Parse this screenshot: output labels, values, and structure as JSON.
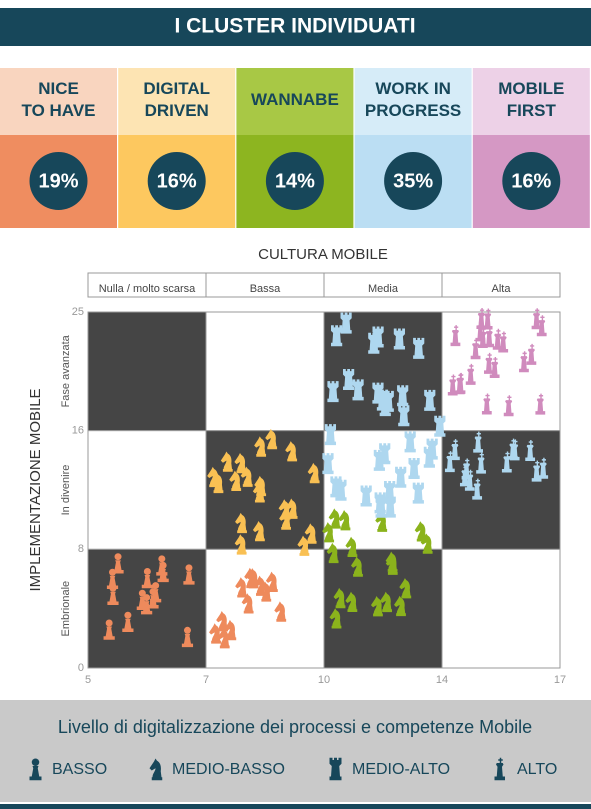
{
  "header": {
    "title": "I CLUSTER INDIVIDUATI"
  },
  "clusters": [
    {
      "name": "NICE\nTO HAVE",
      "share": "19%"
    },
    {
      "name": "DIGITAL\nDRIVEN",
      "share": "16%"
    },
    {
      "name": "WANNABE",
      "share": "14%"
    },
    {
      "name": "WORK IN\nPROGRESS",
      "share": "35%"
    },
    {
      "name": "MOBILE\nFIRST",
      "share": "16%"
    }
  ],
  "matrix": {
    "x_title": "CULTURA MOBILE",
    "y_title": "IMPLEMENTAZIONE MOBILE",
    "columns": [
      "Nulla / molto scarsa",
      "Bassa",
      "Media",
      "Alta"
    ],
    "rows": [
      "Fase avanzata",
      "In divenire",
      "Embrionale"
    ],
    "x_ticks": [
      "5",
      "7",
      "10",
      "14",
      "17"
    ],
    "y_ticks": [
      "25",
      "16",
      "8",
      "0"
    ]
  },
  "legend": {
    "title": "Livello di digitalizzazione dei processi e competenze Mobile",
    "items": [
      "BASSO",
      "MEDIO-BASSO",
      "MEDIO-ALTO",
      "ALTO"
    ]
  }
}
